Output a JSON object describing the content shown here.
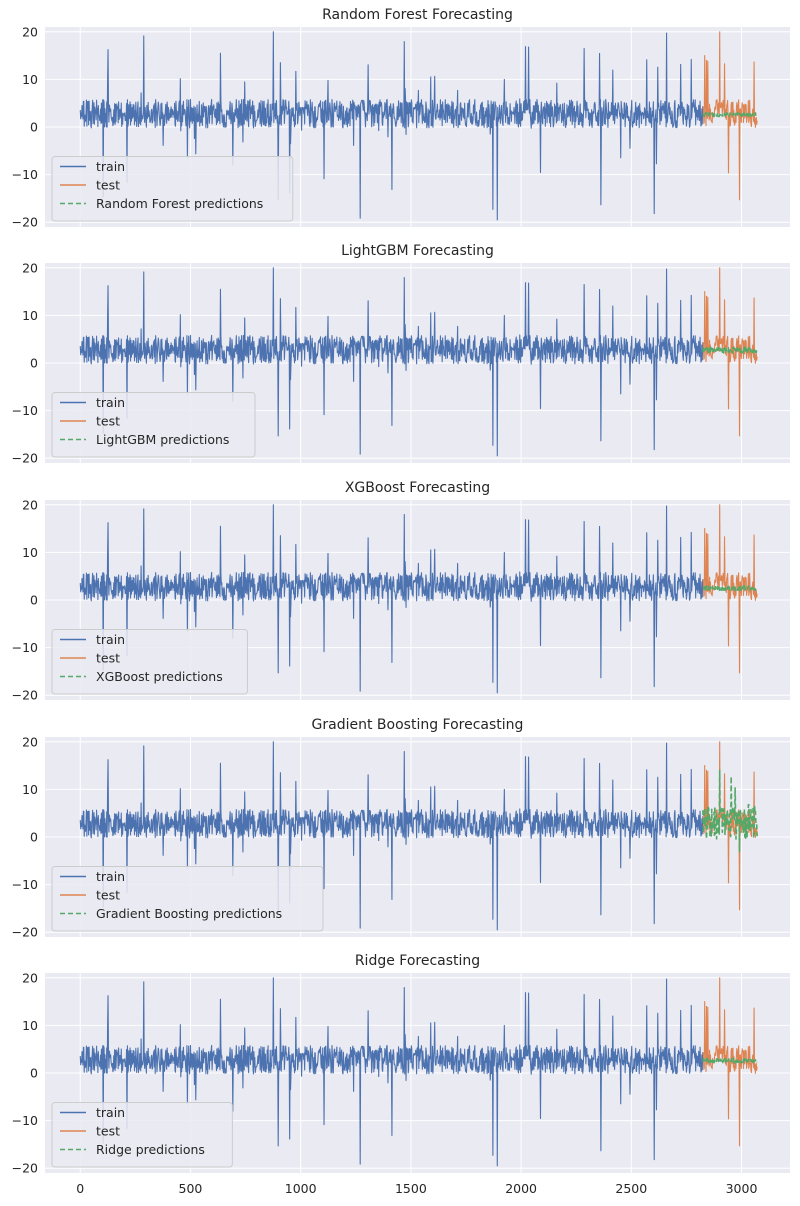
{
  "colors": {
    "train": "#4c72b0",
    "test": "#dd8452",
    "predictions": "#55a868",
    "panel_background": "#eaeaf2",
    "grid": "#ffffff"
  },
  "chart_data": [
    {
      "type": "line",
      "title": "Random Forest Forecasting",
      "xlim": [
        -160,
        3220
      ],
      "ylim": [
        -21,
        21
      ],
      "yticks": [
        -20,
        -10,
        0,
        10,
        20
      ],
      "xticks": [
        0,
        500,
        1000,
        1500,
        2000,
        2500,
        3000
      ],
      "show_xtick_labels": false,
      "grid": true,
      "legend": "lower-left",
      "series": [
        {
          "name": "train",
          "x_range": [
            0,
            2824
          ],
          "style": "solid",
          "level": 2.8,
          "spread": 3,
          "max": 20,
          "min": -19.5
        },
        {
          "name": "test",
          "x_range": [
            2825,
            3072
          ],
          "style": "solid",
          "level": 2.8,
          "spread": 3,
          "max": 20,
          "min": -15.3
        },
        {
          "name": "Random Forest predictions",
          "x_range": [
            2825,
            3072
          ],
          "style": "dashed",
          "level": 2.6,
          "spread": 0.4
        }
      ]
    },
    {
      "type": "line",
      "title": "LightGBM Forecasting",
      "xlim": [
        -160,
        3220
      ],
      "ylim": [
        -21,
        21
      ],
      "yticks": [
        -20,
        -10,
        0,
        10,
        20
      ],
      "xticks": [
        0,
        500,
        1000,
        1500,
        2000,
        2500,
        3000
      ],
      "show_xtick_labels": false,
      "grid": true,
      "legend": "lower-left",
      "series": [
        {
          "name": "train",
          "x_range": [
            0,
            2824
          ],
          "style": "solid",
          "level": 2.8,
          "spread": 3,
          "max": 20,
          "min": -19.5
        },
        {
          "name": "test",
          "x_range": [
            2825,
            3072
          ],
          "style": "solid",
          "level": 2.8,
          "spread": 3,
          "max": 20,
          "min": -15.3
        },
        {
          "name": "LightGBM predictions",
          "x_range": [
            2825,
            3072
          ],
          "style": "dashed",
          "level": 2.7,
          "spread": 0.6
        }
      ]
    },
    {
      "type": "line",
      "title": "XGBoost Forecasting",
      "xlim": [
        -160,
        3220
      ],
      "ylim": [
        -21,
        21
      ],
      "yticks": [
        -20,
        -10,
        0,
        10,
        20
      ],
      "xticks": [
        0,
        500,
        1000,
        1500,
        2000,
        2500,
        3000
      ],
      "show_xtick_labels": false,
      "grid": true,
      "legend": "lower-left",
      "series": [
        {
          "name": "train",
          "x_range": [
            0,
            2824
          ],
          "style": "solid",
          "level": 2.8,
          "spread": 3,
          "max": 20,
          "min": -19.5
        },
        {
          "name": "test",
          "x_range": [
            2825,
            3072
          ],
          "style": "solid",
          "level": 2.8,
          "spread": 3,
          "max": 20,
          "min": -15.3
        },
        {
          "name": "XGBoost predictions",
          "x_range": [
            2825,
            3072
          ],
          "style": "dashed",
          "level": 2.5,
          "spread": 0.5
        }
      ]
    },
    {
      "type": "line",
      "title": "Gradient Boosting Forecasting",
      "xlim": [
        -160,
        3220
      ],
      "ylim": [
        -21,
        21
      ],
      "yticks": [
        -20,
        -10,
        0,
        10,
        20
      ],
      "xticks": [
        0,
        500,
        1000,
        1500,
        2000,
        2500,
        3000
      ],
      "show_xtick_labels": false,
      "grid": true,
      "legend": "lower-left",
      "series": [
        {
          "name": "train",
          "x_range": [
            0,
            2824
          ],
          "style": "solid",
          "level": 2.8,
          "spread": 3,
          "max": 20,
          "min": -19.5
        },
        {
          "name": "test",
          "x_range": [
            2825,
            3072
          ],
          "style": "solid",
          "level": 2.8,
          "spread": 3,
          "max": 20,
          "min": -15.3
        },
        {
          "name": "Gradient Boosting predictions",
          "x_range": [
            2825,
            3072
          ],
          "style": "dashed",
          "level": 3,
          "spread": 3.5,
          "max": 14,
          "min": -3
        }
      ]
    },
    {
      "type": "line",
      "title": "Ridge Forecasting",
      "xlim": [
        -160,
        3220
      ],
      "ylim": [
        -21,
        21
      ],
      "yticks": [
        -20,
        -10,
        0,
        10,
        20
      ],
      "xticks": [
        0,
        500,
        1000,
        1500,
        2000,
        2500,
        3000
      ],
      "show_xtick_labels": true,
      "grid": true,
      "legend": "lower-left",
      "series": [
        {
          "name": "train",
          "x_range": [
            0,
            2824
          ],
          "style": "solid",
          "level": 2.8,
          "spread": 3,
          "max": 20,
          "min": -19.5
        },
        {
          "name": "test",
          "x_range": [
            2825,
            3072
          ],
          "style": "solid",
          "level": 2.8,
          "spread": 3,
          "max": 20,
          "min": -15.3
        },
        {
          "name": "Ridge predictions",
          "x_range": [
            2825,
            3072
          ],
          "style": "dashed",
          "level": 2.6,
          "spread": 0.5
        }
      ]
    }
  ]
}
